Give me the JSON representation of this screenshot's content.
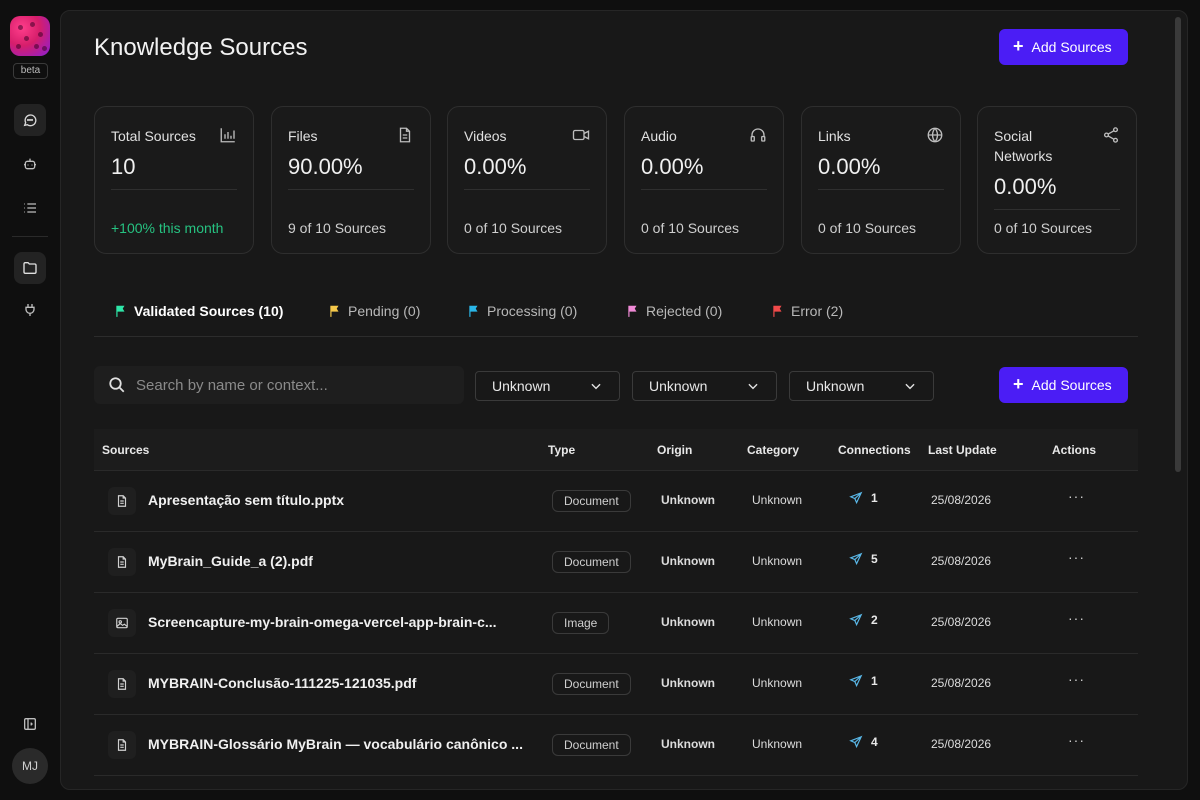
{
  "sidebar": {
    "beta_label": "beta",
    "avatar_initials": "MJ",
    "items": [
      {
        "icon": "chat-icon",
        "active": true
      },
      {
        "icon": "bot-icon",
        "active": false
      },
      {
        "icon": "list-icon",
        "active": false
      },
      {
        "icon": "folder-icon",
        "active": true
      },
      {
        "icon": "plug-icon",
        "active": false
      }
    ]
  },
  "header": {
    "title": "Knowledge Sources",
    "add_button_label": "Add Sources"
  },
  "stats": [
    {
      "label": "Total Sources",
      "value": "10",
      "sub": "+100% this month",
      "icon": "bar-chart-icon"
    },
    {
      "label": "Files",
      "value": "90.00%",
      "sub": "9 of 10 Sources",
      "icon": "file-icon"
    },
    {
      "label": "Videos",
      "value": "0.00%",
      "sub": "0 of 10 Sources",
      "icon": "video-icon"
    },
    {
      "label": "Audio",
      "value": "0.00%",
      "sub": "0 of 10 Sources",
      "icon": "headphones-icon"
    },
    {
      "label": "Links",
      "value": "0.00%",
      "sub": "0 of 10 Sources",
      "icon": "globe-icon"
    },
    {
      "label": "Social Networks",
      "value": "0.00%",
      "sub": "0 of 10 Sources",
      "icon": "share-icon"
    }
  ],
  "tabs": [
    {
      "label": "Validated Sources (10)",
      "color": "#2ee6a8"
    },
    {
      "label": "Pending (0)",
      "color": "#f5c84a"
    },
    {
      "label": "Processing (0)",
      "color": "#2ab6e8"
    },
    {
      "label": "Rejected (0)",
      "color": "#f08ad6"
    },
    {
      "label": "Error (2)",
      "color": "#f04a4a"
    }
  ],
  "filters": {
    "search_placeholder": "Search by name or context...",
    "selects": [
      "Unknown",
      "Unknown",
      "Unknown"
    ],
    "add_button_label": "Add Sources"
  },
  "table": {
    "headers": [
      "Sources",
      "Type",
      "Origin",
      "Category",
      "Connections",
      "Last Update",
      "Actions"
    ],
    "rows": [
      {
        "name": "Apresentação sem título.pptx",
        "type": "Document",
        "origin": "Unknown",
        "category": "Unknown",
        "connections": "1",
        "updated": "25/08/2026",
        "actions": "···",
        "icon": "file-icon"
      },
      {
        "name": "MyBrain_Guide_a (2).pdf",
        "type": "Document",
        "origin": "Unknown",
        "category": "Unknown",
        "connections": "5",
        "updated": "25/08/2026",
        "actions": "···",
        "icon": "file-icon"
      },
      {
        "name": "Screencapture-my-brain-omega-vercel-app-brain-c...",
        "type": "Image",
        "origin": "Unknown",
        "category": "Unknown",
        "connections": "2",
        "updated": "25/08/2026",
        "actions": "···",
        "icon": "image-icon"
      },
      {
        "name": "MYBRAIN-Conclusão-111225-121035.pdf",
        "type": "Document",
        "origin": "Unknown",
        "category": "Unknown",
        "connections": "1",
        "updated": "25/08/2026",
        "actions": "···",
        "icon": "file-icon"
      },
      {
        "name": "MYBRAIN-Glossário MyBrain — vocabulário canônico ...",
        "type": "Document",
        "origin": "Unknown",
        "category": "Unknown",
        "connections": "4",
        "updated": "25/08/2026",
        "actions": "···",
        "icon": "file-icon"
      }
    ]
  },
  "colors": {
    "accent": "#4b1df5",
    "connection_icon": "#5ab8e8",
    "positive": "#26c281"
  }
}
